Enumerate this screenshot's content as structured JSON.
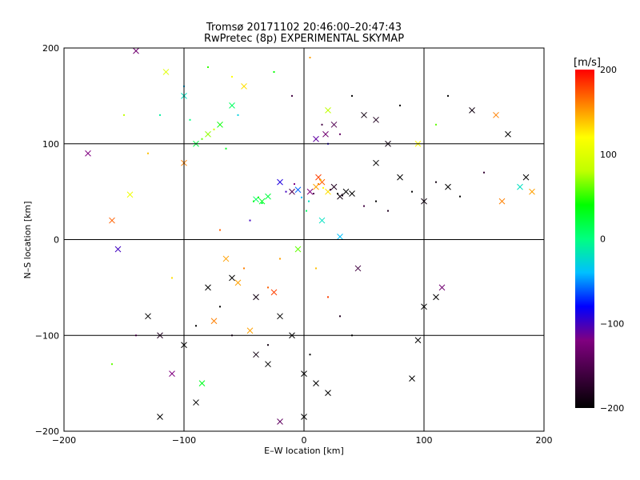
{
  "chart_data": {
    "type": "scatter",
    "title": "Tromsø 20171102 20:46:00–20:47:43",
    "subtitle": "RwPretec (8p) EXPERIMENTAL SKYMAP",
    "xlabel": "E–W location [km]",
    "ylabel": "N–S location [km]",
    "xlim": [
      -200,
      200
    ],
    "ylim": [
      -200,
      200
    ],
    "x_ticks": [
      -200,
      -100,
      0,
      100,
      200
    ],
    "y_ticks": [
      -200,
      -100,
      0,
      100,
      200
    ],
    "grid": true,
    "colorbar": {
      "label": "[m/s]",
      "range": [
        -200,
        200
      ],
      "ticks": [
        200,
        100,
        0,
        -100,
        -200
      ],
      "colors": [
        "#000000",
        "#400040",
        "#800080",
        "#0000ff",
        "#00c0ff",
        "#00ff80",
        "#00ff00",
        "#c0ff00",
        "#ffff00",
        "#ff8000",
        "#ff0000"
      ]
    },
    "markers": [
      "x",
      "dot"
    ],
    "points": [
      [
        10,
        55,
        150,
        "x"
      ],
      [
        15,
        60,
        170,
        "x"
      ],
      [
        20,
        50,
        130,
        "x"
      ],
      [
        5,
        50,
        -120,
        "x"
      ],
      [
        25,
        55,
        -180,
        "x"
      ],
      [
        35,
        50,
        -200,
        "x"
      ],
      [
        40,
        48,
        -200,
        "x"
      ],
      [
        30,
        45,
        -190,
        "x"
      ],
      [
        12,
        65,
        180,
        "x"
      ],
      [
        -5,
        52,
        -60,
        "x"
      ],
      [
        18,
        110,
        -130,
        "x"
      ],
      [
        25,
        120,
        -150,
        "x"
      ],
      [
        10,
        105,
        -110,
        "x"
      ],
      [
        50,
        130,
        -190,
        "x"
      ],
      [
        60,
        125,
        -180,
        "x"
      ],
      [
        -80,
        110,
        70,
        "x"
      ],
      [
        -70,
        120,
        40,
        "x"
      ],
      [
        -90,
        100,
        20,
        "x"
      ],
      [
        -100,
        150,
        -20,
        "x"
      ],
      [
        -60,
        140,
        10,
        "x"
      ],
      [
        -30,
        45,
        20,
        "x"
      ],
      [
        -35,
        40,
        30,
        "x"
      ],
      [
        -40,
        42,
        10,
        "x"
      ],
      [
        -20,
        60,
        -90,
        "x"
      ],
      [
        -10,
        50,
        -150,
        "x"
      ],
      [
        80,
        65,
        -200,
        "x"
      ],
      [
        100,
        40,
        -190,
        "x"
      ],
      [
        120,
        55,
        -200,
        "x"
      ],
      [
        140,
        135,
        -190,
        "x"
      ],
      [
        160,
        130,
        160,
        "x"
      ],
      [
        170,
        110,
        -200,
        "x"
      ],
      [
        185,
        65,
        -200,
        "x"
      ],
      [
        190,
        50,
        150,
        "x"
      ],
      [
        165,
        40,
        160,
        "x"
      ],
      [
        180,
        55,
        -20,
        "x"
      ],
      [
        -60,
        -40,
        -200,
        "x"
      ],
      [
        -80,
        -50,
        -200,
        "x"
      ],
      [
        -40,
        -60,
        -190,
        "x"
      ],
      [
        -20,
        -80,
        -200,
        "x"
      ],
      [
        -10,
        -100,
        -200,
        "x"
      ],
      [
        0,
        -140,
        -200,
        "x"
      ],
      [
        10,
        -150,
        -200,
        "x"
      ],
      [
        20,
        -160,
        -200,
        "x"
      ],
      [
        -30,
        -130,
        -200,
        "x"
      ],
      [
        -40,
        -120,
        -190,
        "x"
      ],
      [
        -130,
        -80,
        -200,
        "x"
      ],
      [
        -120,
        -100,
        -180,
        "x"
      ],
      [
        -110,
        -140,
        -120,
        "x"
      ],
      [
        -100,
        -110,
        -200,
        "x"
      ],
      [
        -90,
        -170,
        -200,
        "x"
      ],
      [
        -120,
        -185,
        -200,
        "x"
      ],
      [
        -160,
        20,
        170,
        "x"
      ],
      [
        -155,
        -10,
        -100,
        "x"
      ],
      [
        -145,
        47,
        110,
        "x"
      ],
      [
        -140,
        197,
        -130,
        "x"
      ],
      [
        100,
        -70,
        -200,
        "x"
      ],
      [
        110,
        -60,
        -200,
        "x"
      ],
      [
        95,
        -105,
        -200,
        "x"
      ],
      [
        90,
        -145,
        -200,
        "x"
      ],
      [
        115,
        -50,
        -130,
        "x"
      ],
      [
        -55,
        -45,
        150,
        "x"
      ],
      [
        -65,
        -20,
        150,
        "x"
      ],
      [
        -75,
        -85,
        160,
        "x"
      ],
      [
        -45,
        -95,
        150,
        "x"
      ],
      [
        -25,
        -55,
        180,
        "x"
      ],
      [
        30,
        3,
        -40,
        "x"
      ],
      [
        15,
        20,
        -20,
        "x"
      ],
      [
        -5,
        -10,
        60,
        "x"
      ],
      [
        -85,
        -150,
        30,
        "x"
      ],
      [
        -20,
        -190,
        -140,
        "x"
      ],
      [
        0,
        -185,
        -200,
        "x"
      ],
      [
        -180,
        90,
        -120,
        "x"
      ],
      [
        45,
        -30,
        -160,
        "x"
      ],
      [
        60,
        80,
        -200,
        "x"
      ],
      [
        70,
        100,
        -190,
        "x"
      ],
      [
        20,
        135,
        80,
        "x"
      ],
      [
        -50,
        160,
        130,
        "x"
      ],
      [
        -115,
        175,
        100,
        "x"
      ],
      [
        95,
        100,
        120,
        "x"
      ],
      [
        -100,
        80,
        160,
        "x"
      ],
      [
        12,
        58,
        160,
        "dot"
      ],
      [
        14,
        62,
        140,
        "dot"
      ],
      [
        16,
        54,
        120,
        "dot"
      ],
      [
        8,
        48,
        -150,
        "dot"
      ],
      [
        22,
        52,
        -170,
        "dot"
      ],
      [
        28,
        48,
        -200,
        "dot"
      ],
      [
        32,
        46,
        -190,
        "dot"
      ],
      [
        -2,
        44,
        -40,
        "dot"
      ],
      [
        4,
        40,
        -20,
        "dot"
      ],
      [
        2,
        30,
        10,
        "dot"
      ],
      [
        -8,
        58,
        -120,
        "dot"
      ],
      [
        -15,
        50,
        -100,
        "dot"
      ],
      [
        20,
        100,
        -90,
        "dot"
      ],
      [
        30,
        110,
        -140,
        "dot"
      ],
      [
        15,
        120,
        -160,
        "dot"
      ],
      [
        -85,
        105,
        60,
        "dot"
      ],
      [
        -75,
        115,
        90,
        "dot"
      ],
      [
        -65,
        95,
        30,
        "dot"
      ],
      [
        -95,
        125,
        0,
        "dot"
      ],
      [
        -55,
        130,
        -30,
        "dot"
      ],
      [
        -35,
        38,
        20,
        "dot"
      ],
      [
        -38,
        44,
        40,
        "dot"
      ],
      [
        -42,
        40,
        30,
        "dot"
      ],
      [
        90,
        50,
        -200,
        "dot"
      ],
      [
        110,
        60,
        -190,
        "dot"
      ],
      [
        130,
        45,
        -200,
        "dot"
      ],
      [
        150,
        70,
        -170,
        "dot"
      ],
      [
        70,
        30,
        -180,
        "dot"
      ],
      [
        50,
        35,
        -160,
        "dot"
      ],
      [
        60,
        40,
        -200,
        "dot"
      ],
      [
        -50,
        -30,
        160,
        "dot"
      ],
      [
        -30,
        -50,
        170,
        "dot"
      ],
      [
        -20,
        -20,
        150,
        "dot"
      ],
      [
        10,
        -30,
        140,
        "dot"
      ],
      [
        20,
        -60,
        180,
        "dot"
      ],
      [
        -70,
        -70,
        -200,
        "dot"
      ],
      [
        -90,
        -90,
        -200,
        "dot"
      ],
      [
        -60,
        -100,
        -180,
        "dot"
      ],
      [
        -30,
        -110,
        -190,
        "dot"
      ],
      [
        5,
        -120,
        -200,
        "dot"
      ],
      [
        30,
        -80,
        -180,
        "dot"
      ],
      [
        40,
        -100,
        -200,
        "dot"
      ],
      [
        -100,
        160,
        -40,
        "dot"
      ],
      [
        -80,
        180,
        50,
        "dot"
      ],
      [
        -60,
        170,
        120,
        "dot"
      ],
      [
        -120,
        130,
        -10,
        "dot"
      ],
      [
        -130,
        90,
        140,
        "dot"
      ],
      [
        -150,
        130,
        80,
        "dot"
      ],
      [
        40,
        150,
        -200,
        "dot"
      ],
      [
        80,
        140,
        -200,
        "dot"
      ],
      [
        120,
        150,
        -200,
        "dot"
      ],
      [
        110,
        120,
        60,
        "dot"
      ],
      [
        -10,
        150,
        -160,
        "dot"
      ],
      [
        -25,
        175,
        40,
        "dot"
      ],
      [
        5,
        190,
        150,
        "dot"
      ],
      [
        -45,
        20,
        -100,
        "dot"
      ],
      [
        -70,
        10,
        170,
        "dot"
      ],
      [
        -110,
        -40,
        130,
        "dot"
      ],
      [
        -140,
        -100,
        -120,
        "dot"
      ],
      [
        -160,
        -130,
        60,
        "dot"
      ]
    ]
  }
}
